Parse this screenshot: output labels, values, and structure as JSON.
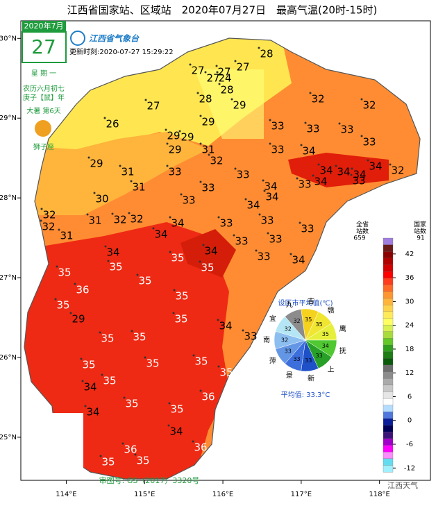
{
  "title": "江西省国家站、区域站　2020年07月27日　最高气温(20时-15时)",
  "date": {
    "month": "2020年7月",
    "day": "27",
    "weekday": "星 期 一",
    "lunar": "农历六月初七",
    "year": "庚子【鼠】年",
    "term": "大暑 第6天",
    "zodiac": "狮子座"
  },
  "logo": "江西省气象台",
  "update_time": "更新时刻:2020-07-27 15:29:22",
  "map": {
    "xlim": [
      113.42,
      118.65
    ],
    "ylim": [
      24.46,
      30.22
    ],
    "xticks": [
      {
        "value": 114,
        "label": "114°E"
      },
      {
        "value": 115,
        "label": "115°E"
      },
      {
        "value": 116,
        "label": "116°E"
      },
      {
        "value": 117,
        "label": "117°E"
      },
      {
        "value": 118,
        "label": "118°E"
      }
    ],
    "yticks": [
      {
        "value": 30,
        "label": "30°N"
      },
      {
        "value": 29,
        "label": "29°N"
      },
      {
        "value": 28,
        "label": "28°N"
      },
      {
        "value": 27,
        "label": "27°N"
      },
      {
        "value": 26,
        "label": "26°N"
      },
      {
        "value": 25,
        "label": "25°N"
      }
    ],
    "stations": [
      27,
      27,
      27,
      28,
      27,
      24,
      28,
      27,
      28,
      29,
      32,
      32,
      26,
      29,
      33,
      33,
      33,
      29,
      29,
      29,
      31,
      32,
      33,
      34,
      33,
      29,
      31,
      33,
      33,
      34,
      34,
      34,
      34,
      32,
      31,
      33,
      34,
      33,
      34,
      33,
      30,
      33,
      34,
      34,
      32,
      31,
      32,
      32,
      34,
      33,
      33,
      32,
      31,
      34,
      33,
      33,
      34,
      33,
      34,
      35,
      35,
      35,
      33,
      34,
      36,
      35,
      35,
      35,
      35,
      29,
      35,
      34,
      33,
      35,
      35,
      35,
      35,
      35,
      35,
      34,
      35,
      36,
      34,
      35,
      34,
      35,
      36,
      35,
      35,
      36
    ]
  },
  "legend": {
    "header_all": "全省\n站数",
    "all_count": "659",
    "header_nat": "国家\n站数",
    "nat_count": "91",
    "lim": [
      -13,
      46
    ],
    "ticks": [
      42,
      36,
      30,
      24,
      18,
      12,
      6,
      0,
      -6,
      -12
    ],
    "colors": [
      "#a07de0",
      "#6b1a1a",
      "#8b0000",
      "#b00000",
      "#d40000",
      "#ff0000",
      "#ff3c1e",
      "#ff6a28",
      "#ff9632",
      "#ffb43c",
      "#ffd24b",
      "#ffeb5a",
      "#ffff64",
      "#d8f050",
      "#a8dc3c",
      "#64c828",
      "#2ea01e",
      "#1e7d14",
      "#0a5a0a",
      "#6e6e6e",
      "#8c8c8c",
      "#aaaaaa",
      "#c8c8c8",
      "#e6e6e6",
      "#ffffff",
      "#b4dcff",
      "#5078dc",
      "#0a1e9b",
      "#00005a",
      "#3c1478",
      "#a000c8",
      "#ff00ff",
      "#ff8cff",
      "#64dcf0",
      "#a0f0ff"
    ]
  },
  "pie": {
    "title": "设区市平均值(℃)",
    "average": "平均值: 33.3°C",
    "cities": [
      {
        "name": "吉",
        "value": 35,
        "color": "#f5d21e"
      },
      {
        "name": "赣",
        "value": 35,
        "color": "#f0e632"
      },
      {
        "name": "鹰",
        "value": 35,
        "color": "#e6f03c"
      },
      {
        "name": "抚",
        "value": 34,
        "color": "#50c832"
      },
      {
        "name": "上",
        "value": 33,
        "color": "#28a028"
      },
      {
        "name": "新",
        "value": 33,
        "color": "#1e50c8"
      },
      {
        "name": "景",
        "value": 33,
        "color": "#3c6edc"
      },
      {
        "name": "萍",
        "value": 33,
        "color": "#6496e6"
      },
      {
        "name": "南",
        "value": 32,
        "color": "#8cbef0"
      },
      {
        "name": "宜",
        "value": 32,
        "color": "#b4e6f5"
      },
      {
        "name": "九",
        "value": 32,
        "color": "#8c8c8c"
      }
    ]
  },
  "footer": "审图号: GS（2017）3320号",
  "watermark": "江西天气"
}
